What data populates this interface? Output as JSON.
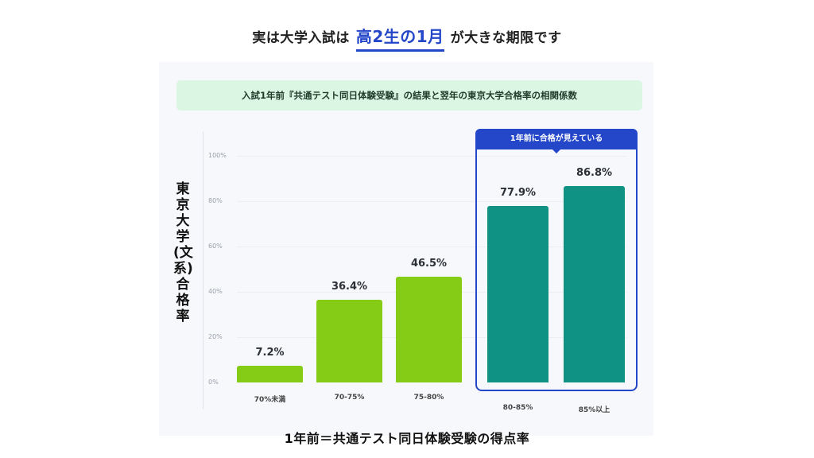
{
  "headline": {
    "prefix": "実は大学入試は",
    "highlight": "高2生の1月",
    "suffix": "が大きな期限です"
  },
  "colors": {
    "accent_blue": "#2447c9",
    "bar_green": "#84cc16",
    "bar_teal": "#0f9283",
    "subtitle_bg": "#dbf7e4"
  },
  "chart_data": {
    "type": "bar",
    "title": "入試1年前『共通テスト同日体験受験』の結果と翌年の東京大学合格率の相関係数",
    "xlabel": "1年前＝共通テスト同日体験受験の得点率",
    "ylabel": "東京大学(文系)合格率",
    "ylim": [
      0,
      100
    ],
    "yticks": [
      "100%",
      "80%",
      "60%",
      "40%",
      "20%",
      "0%"
    ],
    "categories": [
      "70%未満",
      "70-75%",
      "75-80%",
      "80-85%",
      "85%以上"
    ],
    "values": [
      7.2,
      36.4,
      46.5,
      77.9,
      86.8
    ],
    "value_labels": [
      "7.2%",
      "36.4%",
      "46.5%",
      "77.9%",
      "86.8%"
    ],
    "grid": true,
    "annotation": {
      "label": "1年前に合格が見えている",
      "categories": [
        "80-85%",
        "85%以上"
      ]
    }
  }
}
